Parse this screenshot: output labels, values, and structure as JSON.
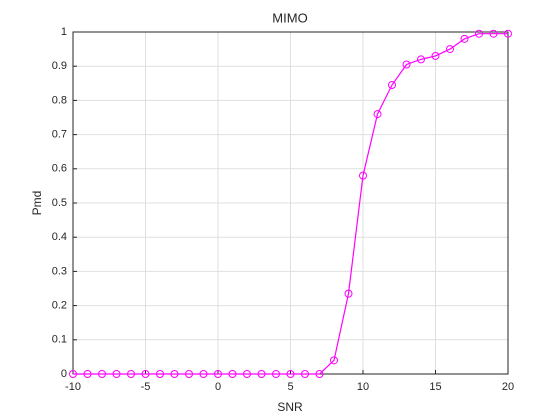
{
  "chart_data": {
    "type": "line",
    "title": "MIMO",
    "xlabel": "SNR",
    "ylabel": "Pmd",
    "x": [
      -10,
      -9,
      -8,
      -7,
      -6,
      -5,
      -4,
      -3,
      -2,
      -1,
      0,
      1,
      2,
      3,
      4,
      5,
      6,
      7,
      8,
      9,
      10,
      11,
      12,
      13,
      14,
      15,
      16,
      17,
      18,
      19,
      20
    ],
    "series": [
      {
        "color": "#ff00ff",
        "marker": "circle",
        "values": [
          0,
          0,
          0,
          0,
          0,
          0,
          0,
          0,
          0,
          0,
          0,
          0,
          0,
          0,
          0,
          0,
          0,
          0,
          0.04,
          0.235,
          0.58,
          0.76,
          0.845,
          0.905,
          0.92,
          0.93,
          0.95,
          0.98,
          0.995,
          0.995,
          0.995
        ]
      }
    ],
    "xlim": [
      -10,
      20
    ],
    "xticks": [
      -10,
      -5,
      0,
      5,
      10,
      15,
      20
    ],
    "ylim": [
      0,
      1
    ],
    "yticks": [
      0,
      0.1,
      0.2,
      0.3,
      0.4,
      0.5,
      0.6,
      0.7,
      0.8,
      0.9,
      1
    ],
    "grid": true
  }
}
